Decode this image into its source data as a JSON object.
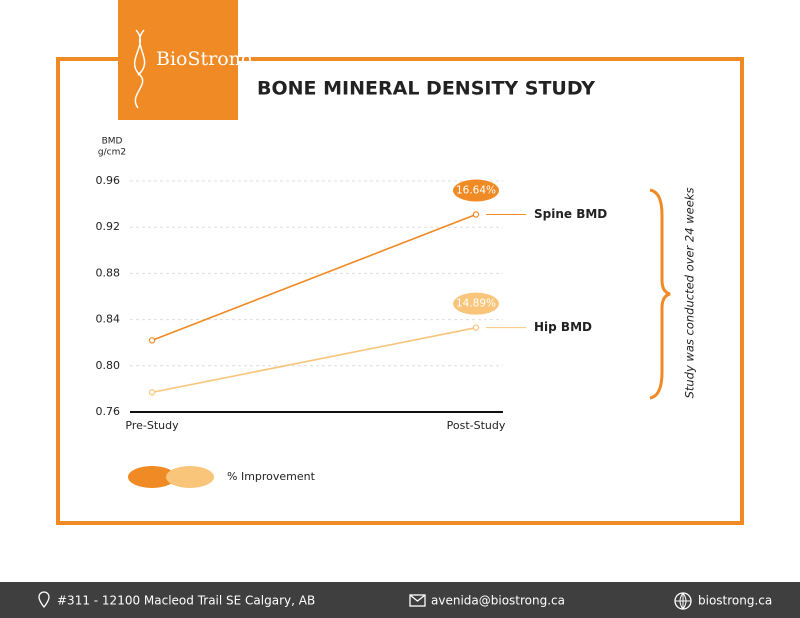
{
  "logo": {
    "name": "BioStrong"
  },
  "chart_data": {
    "type": "line",
    "title": "BONE MINERAL DENSITY STUDY",
    "ylabel": [
      "BMD",
      "g/cm2"
    ],
    "categories": [
      "Pre-Study",
      "Post-Study"
    ],
    "series": [
      {
        "name": "Spine BMD",
        "color": "#f08a24",
        "values": [
          0.822,
          0.931
        ],
        "annotation": "16.64%"
      },
      {
        "name": "Hip BMD",
        "color": "#f8c57a",
        "values": [
          0.777,
          0.833
        ],
        "annotation": "14.89%"
      }
    ],
    "ylim": [
      0.76,
      0.96
    ],
    "yticks": [
      0.76,
      {
        "value": 0.8,
        "label": "0.80"
      },
      0.84,
      0.88,
      0.92,
      0.96
    ],
    "grid": true,
    "legend": "% Improvement",
    "side_note": "Study was conducted over 24 weeks"
  },
  "footer": {
    "address": "#311 - 12100 Macleod Trail SE Calgary, AB",
    "email": "avenida@biostrong.ca",
    "website": "biostrong.ca"
  }
}
